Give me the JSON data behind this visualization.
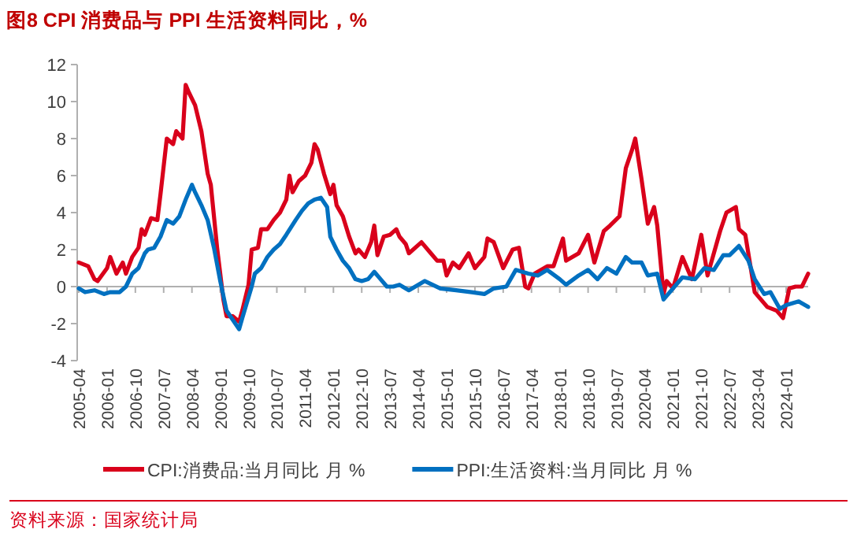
{
  "chart_data": {
    "type": "line",
    "title": "图8  CPI 消费品与 PPI 生活资料同比，%",
    "annotations": [
      "资料来源：国家统计局"
    ],
    "ylim": [
      -4,
      12
    ],
    "yticks": [
      -4,
      -2,
      0,
      2,
      4,
      6,
      8,
      10,
      12
    ],
    "xlim": [
      "2005-04",
      "2024-08"
    ],
    "xticks": [
      "2005-04",
      "2006-01",
      "2006-10",
      "2007-07",
      "2008-04",
      "2009-01",
      "2009-10",
      "2010-07",
      "2011-04",
      "2012-01",
      "2012-10",
      "2013-07",
      "2014-04",
      "2015-01",
      "2015-10",
      "2016-07",
      "2017-04",
      "2018-01",
      "2018-10",
      "2019-07",
      "2020-04",
      "2021-01",
      "2021-10",
      "2022-07",
      "2023-04",
      "2024-01"
    ],
    "legend": "bottom",
    "marker": "none",
    "line_style": "solid",
    "series": [
      {
        "name": "CPI:消费品:当月同比 月 %",
        "color": "#d9001b",
        "x": [
          "2005-04",
          "2005-07",
          "2005-09",
          "2005-10",
          "2006-01",
          "2006-02",
          "2006-04",
          "2006-06",
          "2006-07",
          "2006-09",
          "2006-11",
          "2006-12",
          "2007-01",
          "2007-03",
          "2007-05",
          "2007-06",
          "2007-08",
          "2007-10",
          "2007-11",
          "2008-01",
          "2008-02",
          "2008-03",
          "2008-05",
          "2008-07",
          "2008-09",
          "2008-10",
          "2008-12",
          "2009-02",
          "2009-03",
          "2009-05",
          "2009-07",
          "2009-08",
          "2009-10",
          "2009-11",
          "2010-01",
          "2010-02",
          "2010-04",
          "2010-06",
          "2010-08",
          "2010-10",
          "2010-11",
          "2010-12",
          "2011-02",
          "2011-04",
          "2011-06",
          "2011-07",
          "2011-08",
          "2011-10",
          "2011-12",
          "2012-01",
          "2012-02",
          "2012-04",
          "2012-06",
          "2012-08",
          "2012-09",
          "2012-11",
          "2013-01",
          "2013-02",
          "2013-03",
          "2013-05",
          "2013-07",
          "2013-09",
          "2013-10",
          "2013-12",
          "2014-01",
          "2014-05",
          "2014-08",
          "2014-10",
          "2014-12",
          "2015-01",
          "2015-03",
          "2015-05",
          "2015-08",
          "2015-10",
          "2016-01",
          "2016-02",
          "2016-04",
          "2016-07",
          "2016-10",
          "2016-12",
          "2017-02",
          "2017-03",
          "2017-05",
          "2017-09",
          "2017-11",
          "2018-02",
          "2018-03",
          "2018-07",
          "2018-10",
          "2018-12",
          "2019-03",
          "2019-05",
          "2019-08",
          "2019-10",
          "2019-12",
          "2020-01",
          "2020-03",
          "2020-05",
          "2020-07",
          "2020-08",
          "2020-10",
          "2020-11",
          "2021-01",
          "2021-04",
          "2021-07",
          "2021-10",
          "2021-12",
          "2022-04",
          "2022-06",
          "2022-09",
          "2022-10",
          "2022-12",
          "2023-03",
          "2023-07",
          "2023-10",
          "2023-12",
          "2024-02",
          "2024-04",
          "2024-06",
          "2024-08"
        ],
        "values": [
          1.3,
          1.1,
          0.4,
          0.3,
          1.0,
          1.6,
          0.7,
          1.3,
          0.7,
          1.6,
          2.1,
          3.1,
          2.8,
          3.7,
          3.6,
          5.0,
          8.0,
          7.7,
          8.4,
          8.0,
          10.9,
          10.5,
          9.8,
          8.4,
          6.1,
          5.5,
          2.1,
          -0.7,
          -1.6,
          -1.6,
          -1.9,
          -1.3,
          0.1,
          2.0,
          2.1,
          3.1,
          3.1,
          3.6,
          4.0,
          4.7,
          6.0,
          5.1,
          5.7,
          6.0,
          6.7,
          7.7,
          7.4,
          6.1,
          5.0,
          5.5,
          4.4,
          3.8,
          2.7,
          1.8,
          2.0,
          1.6,
          2.4,
          3.3,
          1.7,
          2.7,
          2.8,
          3.1,
          2.7,
          2.3,
          1.8,
          2.4,
          1.8,
          1.4,
          1.4,
          0.6,
          1.3,
          1.0,
          1.8,
          1.0,
          1.6,
          2.6,
          2.4,
          1.0,
          2.0,
          2.1,
          0,
          -0.1,
          0.7,
          1.1,
          1.1,
          2.6,
          1.4,
          1.8,
          2.8,
          1.3,
          3.0,
          3.3,
          3.8,
          6.4,
          7.4,
          8.0,
          5.8,
          3.4,
          4.3,
          3.3,
          -0.4,
          0.3,
          -0.1,
          1.6,
          0.4,
          2.8,
          0.6,
          3.0,
          4.0,
          4.3,
          3.1,
          2.8,
          -0.3,
          -1.1,
          -1.3,
          -1.7,
          -0.1,
          0,
          0,
          0.7
        ]
      },
      {
        "name": "PPI:生活资料:当月同比 月 %",
        "color": "#0070c0",
        "x": [
          "2005-04",
          "2005-06",
          "2005-09",
          "2005-12",
          "2006-02",
          "2006-05",
          "2006-07",
          "2006-09",
          "2006-11",
          "2007-01",
          "2007-02",
          "2007-04",
          "2007-06",
          "2007-08",
          "2007-10",
          "2007-12",
          "2008-02",
          "2008-04",
          "2008-05",
          "2008-07",
          "2008-09",
          "2008-11",
          "2009-01",
          "2009-03",
          "2009-05",
          "2009-07",
          "2009-08",
          "2009-11",
          "2009-12",
          "2010-02",
          "2010-04",
          "2010-06",
          "2010-08",
          "2010-10",
          "2011-01",
          "2011-03",
          "2011-05",
          "2011-07",
          "2011-09",
          "2011-11",
          "2011-12",
          "2012-02",
          "2012-04",
          "2012-06",
          "2012-08",
          "2012-10",
          "2012-12",
          "2013-02",
          "2013-04",
          "2013-06",
          "2013-08",
          "2013-10",
          "2014-01",
          "2014-06",
          "2014-11",
          "2015-04",
          "2015-09",
          "2016-01",
          "2016-04",
          "2016-08",
          "2016-11",
          "2017-03",
          "2017-06",
          "2017-09",
          "2018-01",
          "2018-03",
          "2018-07",
          "2018-10",
          "2019-01",
          "2019-04",
          "2019-07",
          "2019-10",
          "2019-12",
          "2020-03",
          "2020-05",
          "2020-08",
          "2020-10",
          "2021-01",
          "2021-04",
          "2021-08",
          "2021-11",
          "2022-02",
          "2022-05",
          "2022-07",
          "2022-10",
          "2023-01",
          "2023-03",
          "2023-06",
          "2023-08",
          "2023-11",
          "2024-01",
          "2024-05",
          "2024-08"
        ],
        "values": [
          -0.1,
          -0.3,
          -0.2,
          -0.4,
          -0.3,
          -0.3,
          0,
          0.7,
          1.0,
          1.8,
          2.0,
          2.1,
          2.7,
          3.6,
          3.4,
          3.8,
          4.7,
          5.5,
          5.1,
          4.4,
          3.6,
          2.1,
          0.3,
          -1.3,
          -1.8,
          -2.3,
          -1.7,
          0,
          0.7,
          1.0,
          1.6,
          2.0,
          2.3,
          2.8,
          3.6,
          4.1,
          4.5,
          4.7,
          4.8,
          4.3,
          2.7,
          2.0,
          1.4,
          1.0,
          0.4,
          0.3,
          0.4,
          0.8,
          0.4,
          0,
          0,
          0.1,
          -0.2,
          0.3,
          -0.1,
          -0.2,
          -0.3,
          -0.4,
          -0.1,
          0,
          0.9,
          0.7,
          0.6,
          0.9,
          0.4,
          0.1,
          0.6,
          0.9,
          0.4,
          1.0,
          0.7,
          1.6,
          1.3,
          1.3,
          0.6,
          0.7,
          -0.7,
          -0.1,
          0.5,
          0.4,
          1.0,
          0.9,
          1.7,
          1.7,
          2.2,
          1.4,
          0.4,
          -0.4,
          -0.3,
          -1.2,
          -1.0,
          -0.8,
          -1.1
        ]
      }
    ]
  }
}
